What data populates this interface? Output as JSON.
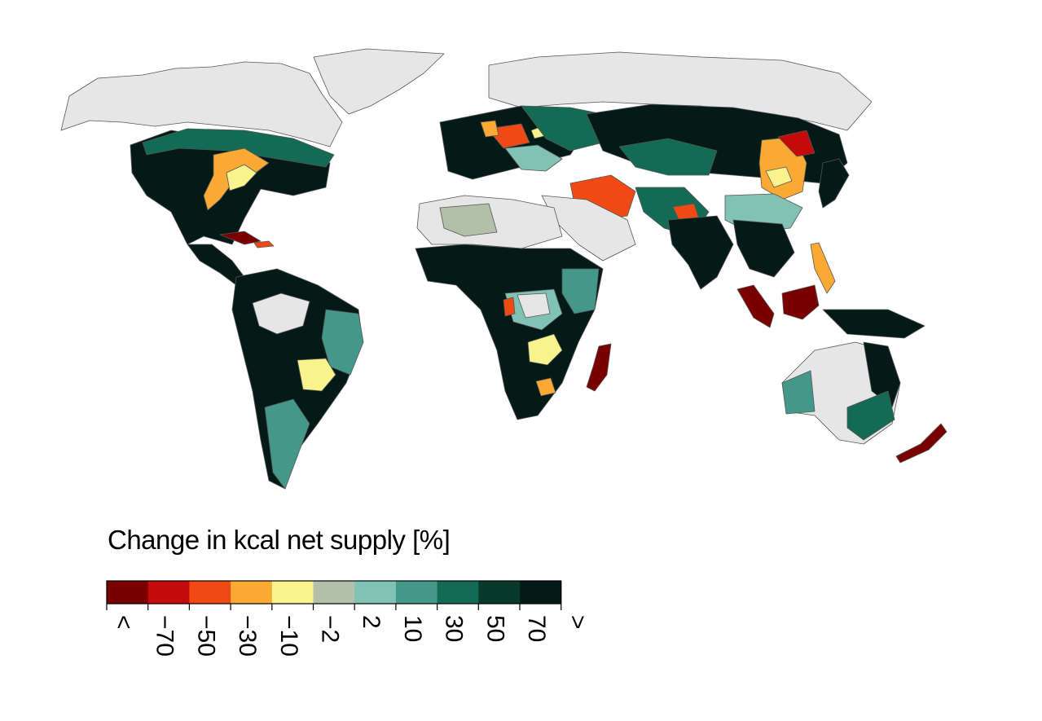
{
  "legend": {
    "title": "Change in kcal net supply [%]",
    "bins": [
      {
        "label": "<",
        "color": "#7a0000"
      },
      {
        "label": "−70",
        "color": "#c40b0b"
      },
      {
        "label": "−50",
        "color": "#f04a14"
      },
      {
        "label": "−30",
        "color": "#fba935"
      },
      {
        "label": "−10",
        "color": "#f8f38d"
      },
      {
        "label": "−2",
        "color": "#b2bfaa"
      },
      {
        "label": "2",
        "color": "#80c3b5"
      },
      {
        "label": "10",
        "color": "#43988a"
      },
      {
        "label": "30",
        "color": "#136b53"
      },
      {
        "label": "50",
        "color": "#063a2a"
      },
      {
        "label": "70",
        "color": "#041a17"
      },
      {
        "label": ">",
        "color": null
      }
    ]
  },
  "map": {
    "no_data_color": "#e6e6e6",
    "border_color": "#555555"
  }
}
